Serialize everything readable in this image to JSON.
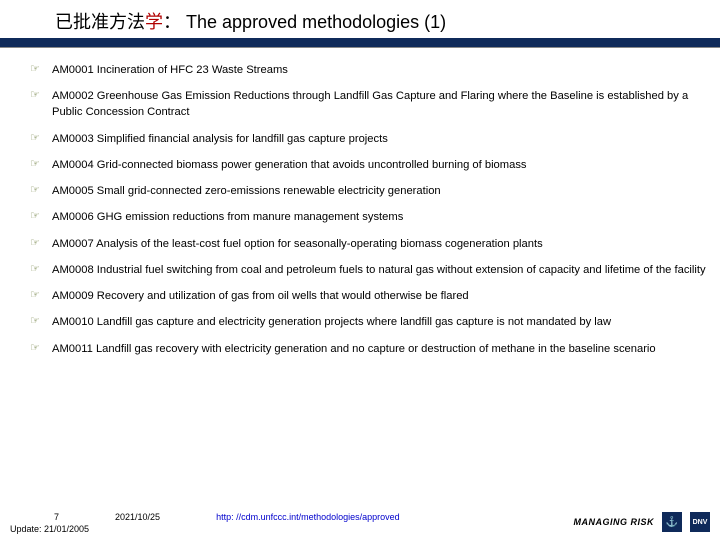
{
  "title": {
    "cn_prefix": "已批准方法",
    "cn_red": "学",
    "cn_colon": "： ",
    "en": "The approved methodologies (1)"
  },
  "items": [
    "AM0001 Incineration of HFC 23 Waste Streams",
    "AM0002 Greenhouse Gas Emission Reductions through Landfill Gas Capture and Flaring where the Baseline is established by a Public Concession Contract",
    "AM0003 Simplified financial analysis for landfill gas capture projects",
    "AM0004 Grid-connected biomass power generation that avoids uncontrolled burning of biomass",
    "AM0005 Small grid-connected zero-emissions renewable electricity generation",
    "AM0006 GHG emission reductions from manure management systems",
    "AM0007 Analysis of the least-cost fuel option for seasonally-operating biomass cogeneration plants",
    "AM0008 Industrial fuel switching from coal and petroleum fuels to natural gas without extension of capacity and lifetime of the facility",
    "AM0009 Recovery and utilization of gas from oil wells that would otherwise be flared",
    "AM0010 Landfill gas capture and electricity generation projects where landfill gas capture is not mandated by law",
    "AM0011 Landfill gas recovery with electricity generation and no capture or destruction of methane in the baseline scenario"
  ],
  "footer": {
    "page": "7",
    "date": "2021/10/25",
    "url": "http: //cdm.unfccc.int/methodologies/approved",
    "update": "Update: 21/01/2005",
    "brand": "MANAGING RISK"
  },
  "colors": {
    "bar": "#0f2a5a",
    "bullet": "#6a7a3a",
    "red": "#b00000",
    "link": "#0000cc"
  }
}
